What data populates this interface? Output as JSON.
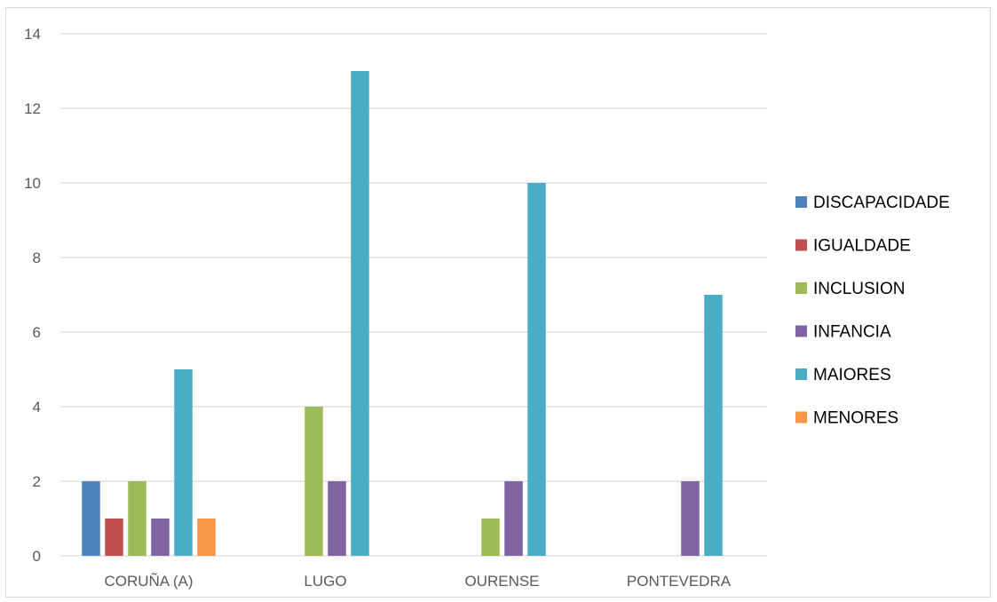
{
  "chart_data": {
    "type": "bar",
    "categories": [
      "CORUÑA (A)",
      "LUGO",
      "OURENSE",
      "PONTEVEDRA"
    ],
    "series": [
      {
        "name": "DISCAPACIDADE",
        "color": "#4F81BD",
        "values": [
          2,
          0,
          0,
          0
        ]
      },
      {
        "name": "IGUALDADE",
        "color": "#C0504D",
        "values": [
          1,
          0,
          0,
          0
        ]
      },
      {
        "name": "INCLUSION",
        "color": "#9BBB59",
        "values": [
          2,
          4,
          1,
          0
        ]
      },
      {
        "name": "INFANCIA",
        "color": "#8064A2",
        "values": [
          1,
          2,
          2,
          2
        ]
      },
      {
        "name": "MAIORES",
        "color": "#4BACC6",
        "values": [
          5,
          13,
          10,
          7
        ]
      },
      {
        "name": "MENORES",
        "color": "#F79646",
        "values": [
          1,
          0,
          0,
          0
        ]
      }
    ],
    "yticks": [
      "0",
      "2",
      "4",
      "6",
      "8",
      "10",
      "12",
      "14"
    ],
    "ylim": [
      0,
      14
    ],
    "grid": true,
    "legend": "right"
  }
}
